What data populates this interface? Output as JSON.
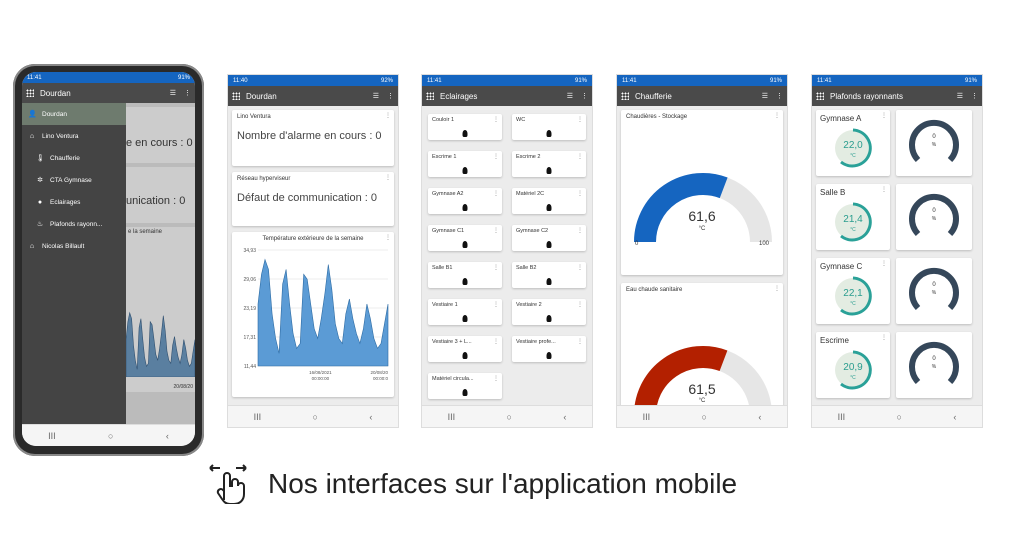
{
  "status_times": [
    "11:41",
    "11:40",
    "11:41",
    "11:41",
    "11:41"
  ],
  "status_batt": [
    "91%",
    "92%",
    "91%",
    "91%",
    "91%"
  ],
  "nav_glyphs": {
    "recent": "III",
    "home": "○",
    "back": "‹"
  },
  "phone": {
    "title": "Dourdan",
    "drawer": [
      {
        "label": "Dourdan",
        "icon": "user-icon"
      },
      {
        "label": "Lino Ventura",
        "icon": "home-icon"
      },
      {
        "label": "Chaufferie",
        "icon": "thermometer-icon"
      },
      {
        "label": "CTA Gymnase",
        "icon": "fan-icon"
      },
      {
        "label": "Eclairages",
        "icon": "bulb-icon"
      },
      {
        "label": "Plafonds rayonn...",
        "icon": "flame-icon"
      },
      {
        "label": "Nicolas Billault",
        "icon": "home-icon"
      }
    ],
    "behind": {
      "alarm": "e en cours : 0",
      "comm": "unication : 0",
      "chart_title": "e la semaine",
      "date": "20/08/20"
    }
  },
  "dourdan": {
    "title": "Dourdan",
    "card1": {
      "title": "Lino Ventura",
      "text": "Nombre d'alarme en cours : 0"
    },
    "card2": {
      "title": "Réseau hyperviseur",
      "text": "Défaut de communication : 0"
    },
    "chart_title": "Température extérieure de la semaine",
    "x_labels": [
      "16/08/2021\n00:00:00",
      "20/08/20\n00:00:0"
    ]
  },
  "chart_data": {
    "type": "area",
    "title": "Température extérieure de la semaine",
    "yticks": [
      "34,93",
      "29,06",
      "23,19",
      "17,31",
      "11,44"
    ],
    "ylim": [
      11.44,
      34.93
    ],
    "values": [
      24,
      30,
      33,
      31,
      22,
      17,
      14,
      28,
      31,
      24,
      18,
      15,
      16,
      30,
      29,
      24,
      19,
      17,
      21,
      26,
      32,
      27,
      20,
      17,
      16,
      22,
      25,
      21,
      18,
      16,
      19,
      24,
      21,
      17,
      15,
      16,
      20,
      24
    ]
  },
  "eclairages": {
    "title": "Eclairages",
    "items": [
      "Couloir 1",
      "WC",
      "Escrime 1",
      "Escrime 2",
      "Gymnase A2",
      "Matériel 2C",
      "Gymnase C1",
      "Gymnase C2",
      "Salle B1",
      "Salle B2",
      "Vestiaire 1",
      "Vestiaire 2",
      "Vestiaire 3 + L...",
      "Vestiaire profe...",
      "Matériel circula..."
    ]
  },
  "chaufferie": {
    "title": "Chaufferie",
    "g1": {
      "title": "Chaudières - Stockage",
      "value": "61,6",
      "unit": "°C",
      "min": "0",
      "max": "100",
      "color": "#1565c0",
      "fraction": 0.616
    },
    "g2": {
      "title": "Eau chaude sanitaire",
      "value": "61,5",
      "unit": "°C",
      "color": "#b32000",
      "fraction": 0.615
    }
  },
  "plafonds": {
    "title": "Plafonds rayonnants",
    "rows": [
      {
        "name": "Gymnase A",
        "temp": "22,0",
        "unit": "°C",
        "pct": "0",
        "pct_unit": "%"
      },
      {
        "name": "Salle B",
        "temp": "21,4",
        "unit": "°C",
        "pct": "0",
        "pct_unit": "%"
      },
      {
        "name": "Gymnase C",
        "temp": "22,1",
        "unit": "°C",
        "pct": "0",
        "pct_unit": "%"
      },
      {
        "name": "Escrime",
        "temp": "20,9",
        "unit": "°C",
        "pct": "0",
        "pct_unit": "%"
      }
    ]
  },
  "caption": "Nos interfaces sur l'application mobile"
}
